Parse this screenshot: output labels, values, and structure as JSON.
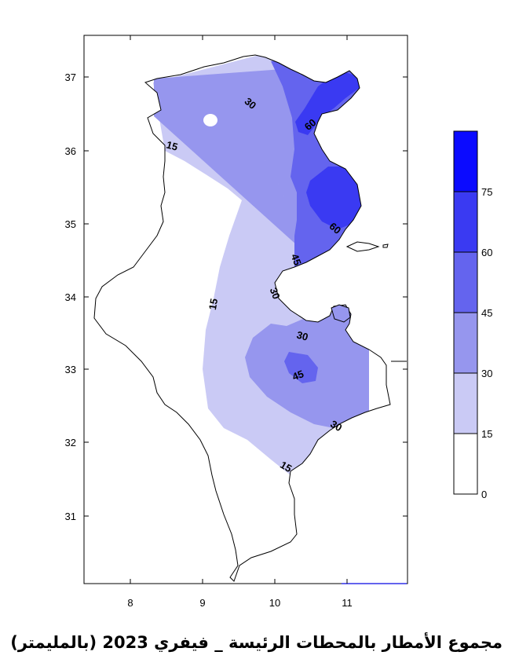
{
  "caption": "مجموع الأمطار بالمحطات الرئيسة _ فيفري 2023 (بالمليمتر)",
  "axes": {
    "x_ticks": [
      "8",
      "9",
      "10",
      "11"
    ],
    "y_ticks": [
      "37",
      "36",
      "35",
      "34",
      "33",
      "32",
      "31"
    ]
  },
  "legend": {
    "labels": [
      "75",
      "60",
      "45",
      "30",
      "15",
      "0"
    ],
    "colors": [
      "#0b0bff",
      "#3a3af2",
      "#6464ee",
      "#9696ee",
      "#cacaf5",
      "#ffffff"
    ]
  },
  "contour_labels": [
    {
      "text": "30",
      "angle": 40
    },
    {
      "text": "60",
      "angle": -40
    },
    {
      "text": "15",
      "angle": 15
    },
    {
      "text": "60",
      "angle": 40
    },
    {
      "text": "45",
      "angle": 70
    },
    {
      "text": "30",
      "angle": 70
    },
    {
      "text": "15",
      "angle": -80
    },
    {
      "text": "30",
      "angle": 15
    },
    {
      "text": "45",
      "angle": -20
    },
    {
      "text": "30",
      "angle": 30
    },
    {
      "text": "15",
      "angle": 30
    }
  ]
}
